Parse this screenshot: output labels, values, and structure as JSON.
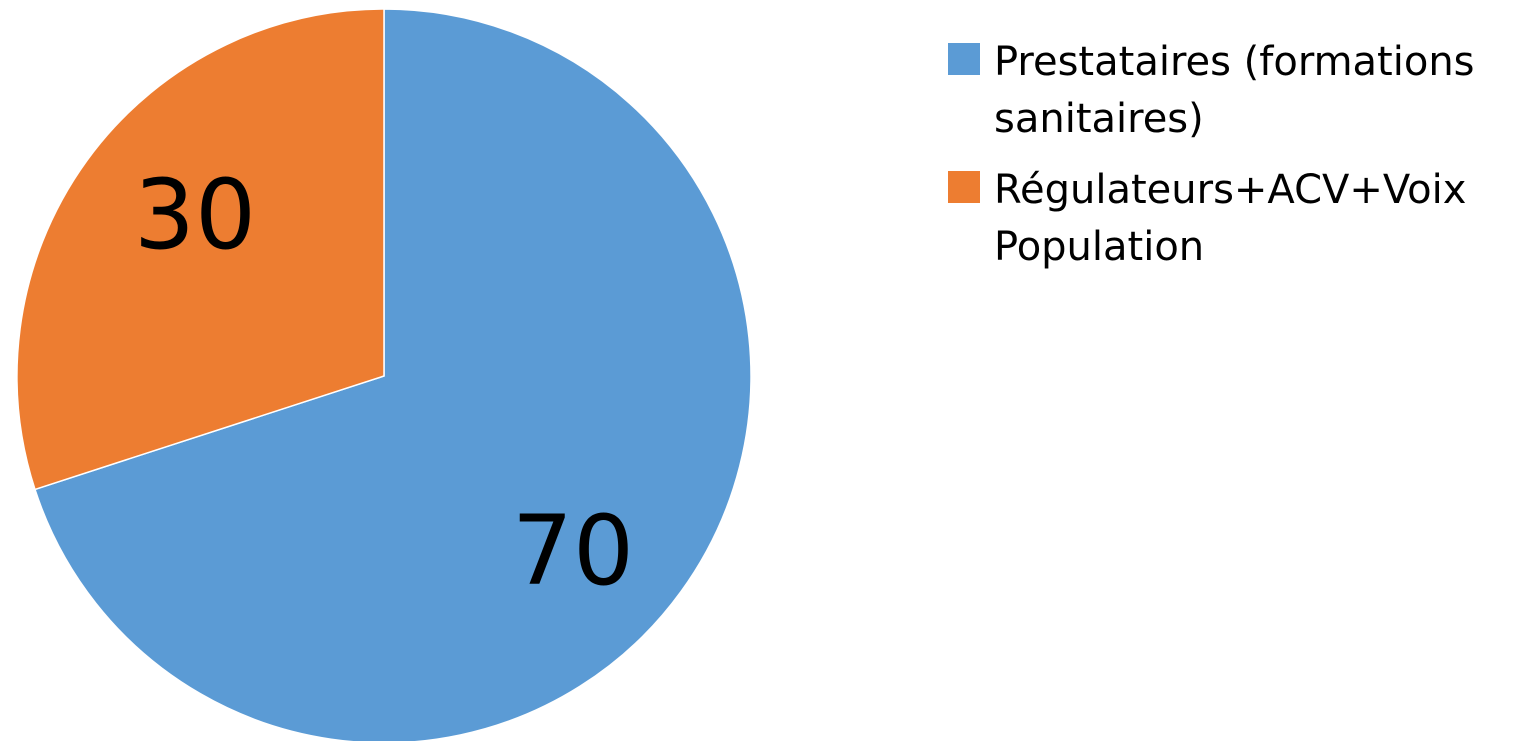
{
  "chart_data": {
    "type": "pie",
    "title": "",
    "start_angle_deg": 0,
    "direction": "clockwise",
    "slices": [
      {
        "label": "Prestataires (formations sanitaires)",
        "value": 70,
        "color": "#5B9BD5"
      },
      {
        "label": "Régulateurs+ACV+Voix Population",
        "value": 30,
        "color": "#ED7D31"
      }
    ],
    "data_labels": [
      "70",
      "30"
    ],
    "legend": {
      "position": "right",
      "entries": [
        "Prestataires (formations sanitaires)",
        "Régulateurs+ACV+Voix Population"
      ]
    }
  }
}
